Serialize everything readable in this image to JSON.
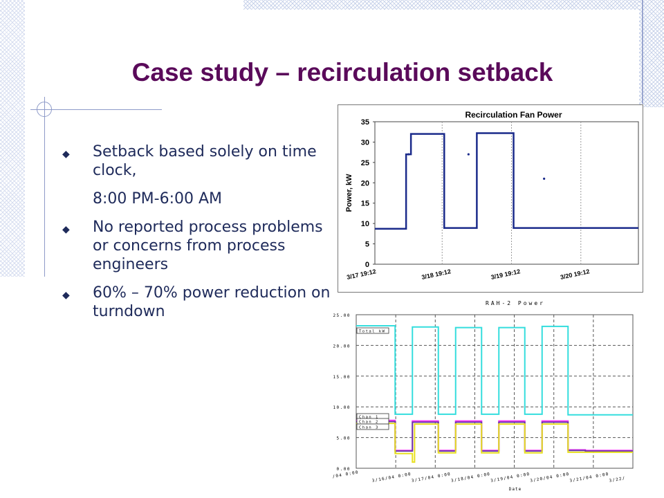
{
  "slide": {
    "title": "Case study – recirculation setback",
    "bullets": [
      {
        "text": "Setback based solely on time clock,",
        "subtext": "8:00 PM-6:00 AM"
      },
      {
        "text": "No reported process problems or concerns from process engineers"
      },
      {
        "text": "60% – 70% power reduction on turndown"
      }
    ],
    "bullet_glyph": "◆"
  },
  "colors": {
    "title": "#5a0a5a",
    "text": "#1e2a5a",
    "chart1_line": "#1a2a8a",
    "chart2_total": "#33dddd",
    "chart2_chan1": "#ff33ff",
    "chart2_chan2": "#6a3aa8",
    "chart2_chan3": "#e8e020"
  },
  "chart_data": [
    {
      "type": "line",
      "title": "Recirculation Fan Power",
      "xlabel": "",
      "ylabel": "Power, kW",
      "ylim": [
        0,
        35
      ],
      "yticks": [
        "0",
        "5",
        "10",
        "15",
        "20",
        "25",
        "30",
        "35"
      ],
      "xticks": [
        "3/17 19:12",
        "3/18 19:12",
        "3/19 19:12",
        "3/20 19:12"
      ],
      "xlim_days": [
        0,
        3.8
      ],
      "grid": true,
      "series": [
        {
          "x": [
            0,
            0.45,
            0.45,
            0.52,
            0.52,
            1.0,
            1.0,
            1.47,
            1.47,
            2.0,
            2.0,
            2.47,
            2.47,
            3.8
          ],
          "values": [
            8.7,
            8.7,
            27,
            27,
            32,
            32,
            8.9,
            8.9,
            32.2,
            32.2,
            8.9,
            8.9,
            8.9,
            8.9
          ]
        }
      ]
    },
    {
      "type": "line",
      "title": "RAH-2 Power",
      "xlabel": "Date",
      "ylabel": "",
      "ylim": [
        0,
        25
      ],
      "yticks": [
        "0.00",
        "5.00",
        "10.00",
        "15.00",
        "20.00",
        "25.00"
      ],
      "xticks": [
        "/04 0:00",
        "3/16/04 0:00",
        "3/17/04 0:00",
        "3/18/04 0:00",
        "3/19/04 0:00",
        "3/20/04 0:00",
        "3/21/04 0:00",
        "3/22/"
      ],
      "grid": true,
      "legend": [
        "Total kW",
        "Chan 1",
        "Chan 2",
        "Chan 3"
      ],
      "series": [
        {
          "name": "Total kW",
          "x": [
            0,
            0.9,
            0.9,
            1.3,
            1.3,
            1.9,
            1.9,
            2.3,
            2.3,
            2.9,
            2.9,
            3.3,
            3.3,
            3.9,
            3.9,
            4.3,
            4.3,
            4.9,
            4.9,
            5.3,
            5.3,
            6.4
          ],
          "values": [
            23.2,
            23.2,
            8.8,
            8.8,
            23.0,
            23.0,
            8.8,
            8.8,
            22.9,
            22.9,
            8.8,
            8.8,
            22.9,
            22.9,
            8.8,
            8.8,
            23.1,
            23.1,
            8.7,
            8.7,
            8.7,
            8.7
          ]
        },
        {
          "name": "Chan 1",
          "x": [
            0,
            0.9,
            0.9,
            1.3,
            1.3,
            1.9,
            1.9,
            2.3,
            2.3,
            2.9,
            2.9,
            3.3,
            3.3,
            3.9,
            3.9,
            4.3,
            4.3,
            4.9,
            4.9,
            5.3,
            5.3,
            6.4
          ],
          "values": [
            7.8,
            7.8,
            2.9,
            2.9,
            7.7,
            7.7,
            2.9,
            2.9,
            7.7,
            7.7,
            2.9,
            2.9,
            7.7,
            7.7,
            2.9,
            2.9,
            7.7,
            7.7,
            3.0,
            3.0,
            2.9,
            2.9
          ]
        },
        {
          "name": "Chan 2",
          "x": [
            0,
            0.9,
            0.9,
            1.3,
            1.3,
            1.9,
            1.9,
            2.3,
            2.3,
            2.9,
            2.9,
            3.3,
            3.3,
            3.9,
            3.9,
            4.3,
            4.3,
            4.9,
            4.9,
            5.3,
            5.3,
            6.4
          ],
          "values": [
            7.6,
            7.6,
            2.8,
            2.8,
            7.5,
            7.5,
            2.8,
            2.8,
            7.5,
            7.5,
            2.8,
            2.8,
            7.5,
            7.5,
            2.8,
            2.8,
            7.5,
            7.5,
            2.9,
            2.9,
            2.8,
            2.8
          ]
        },
        {
          "name": "Chan 3",
          "x": [
            0,
            0.9,
            0.9,
            1.3,
            1.3,
            1.35,
            1.35,
            1.9,
            1.9,
            2.3,
            2.3,
            2.9,
            2.9,
            3.3,
            3.3,
            3.9,
            3.9,
            4.3,
            4.3,
            4.9,
            4.9,
            5.3,
            5.3,
            6.4
          ],
          "values": [
            7.3,
            7.3,
            2.4,
            2.4,
            1.0,
            1.0,
            7.2,
            7.2,
            2.5,
            2.5,
            7.2,
            7.2,
            2.5,
            2.5,
            7.2,
            7.2,
            2.5,
            2.5,
            7.2,
            7.2,
            2.6,
            2.6,
            2.6,
            2.6
          ]
        }
      ]
    }
  ]
}
